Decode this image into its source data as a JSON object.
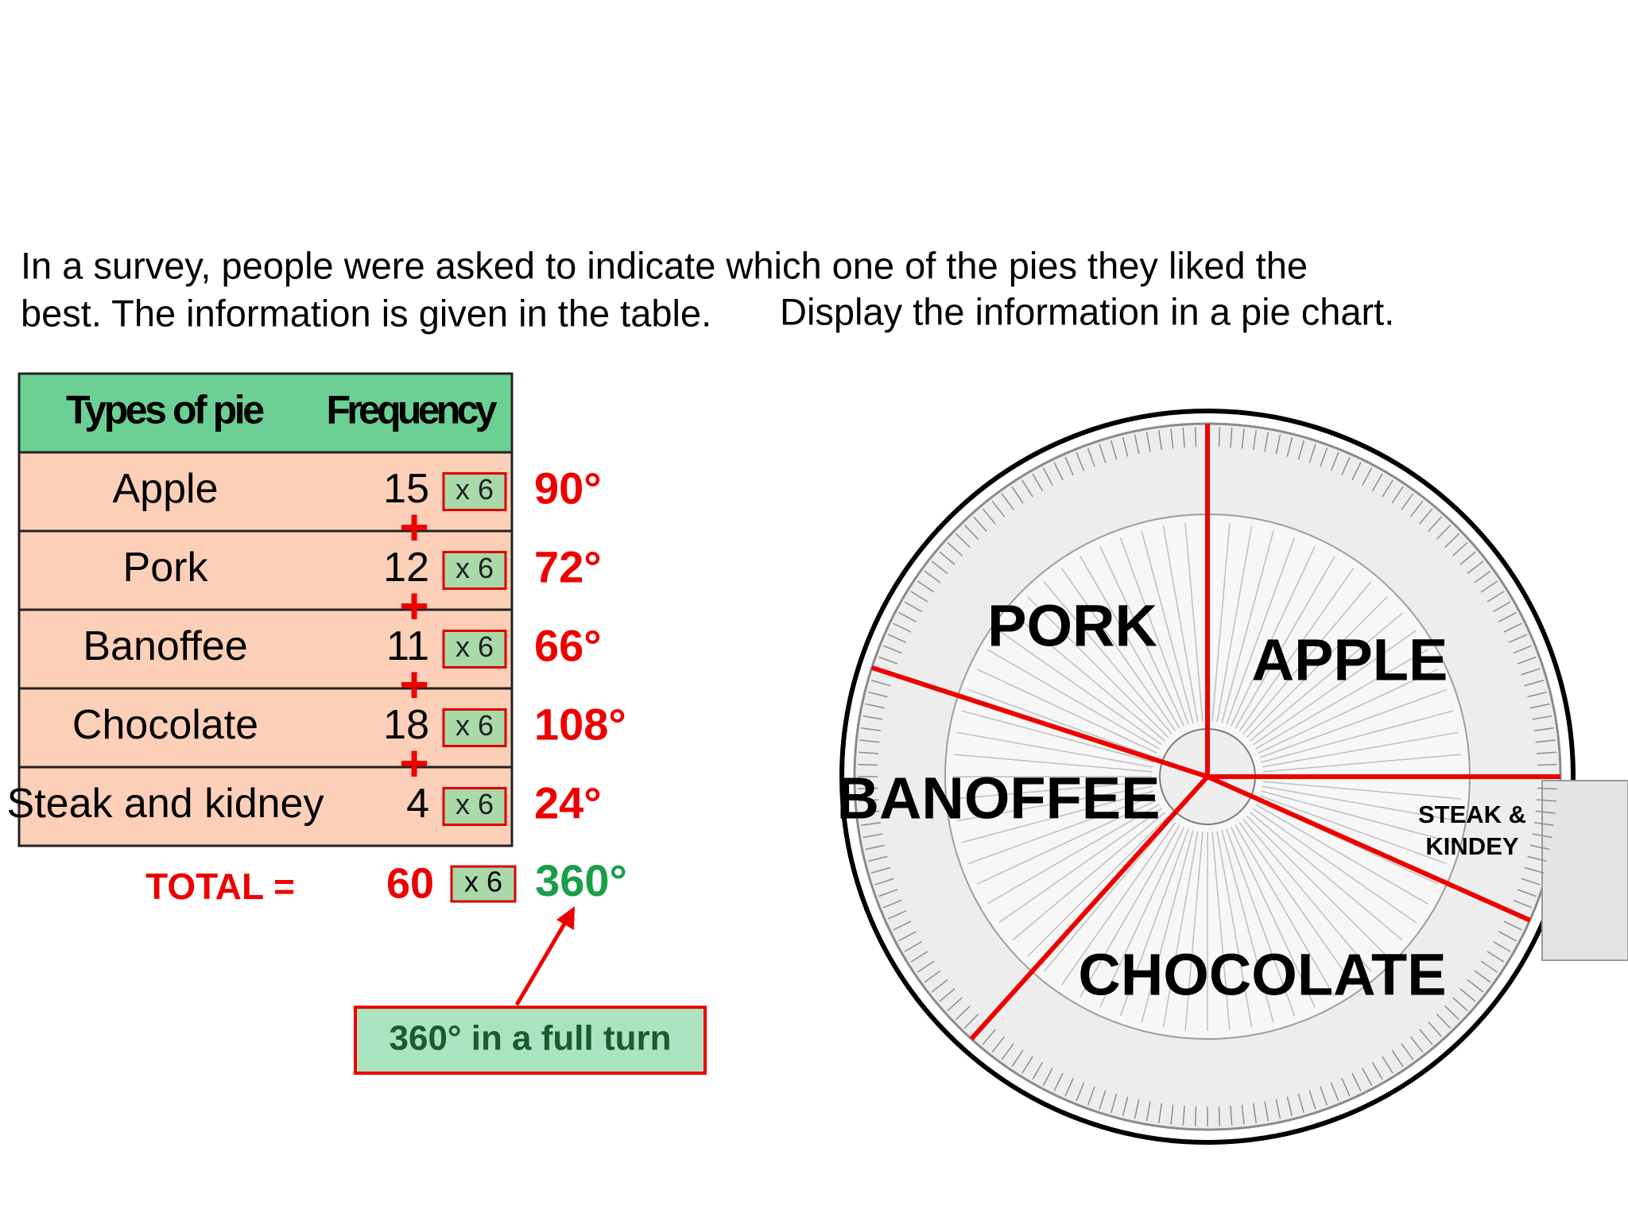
{
  "instructions": [
    "In a survey, people were asked to indicate which one of the pies they liked the",
    "best. The information is given in the table.",
    "Display the information in a pie chart."
  ],
  "table": {
    "header": [
      "Types of pie",
      "Frequency"
    ],
    "rows": [
      [
        "Apple",
        15
      ],
      [
        "Pork",
        12
      ],
      [
        "Banoffee",
        11
      ],
      [
        "Chocolate",
        18
      ],
      [
        "Steak and kidney",
        4
      ]
    ]
  },
  "multipliers": [
    "x 6",
    "x 6",
    "x 6",
    "x 6",
    "x 6"
  ],
  "plus_signs": [
    "+",
    "+",
    "+",
    "+"
  ],
  "angles": [
    {
      "value": 90,
      "label": "90°"
    },
    {
      "value": 72,
      "label": "72°"
    },
    {
      "value": 66,
      "label": "66°"
    },
    {
      "value": 108,
      "label": "108°"
    },
    {
      "value": 24,
      "label": "24°"
    }
  ],
  "total": {
    "label": "TOTAL =",
    "frequency": 60,
    "multiplier": "x 6",
    "angle": {
      "value": 360,
      "label": "360°"
    }
  },
  "callout": "360° in a full turn",
  "pie_labels": [
    "APPLE",
    "PORK",
    "BANOFFEE",
    "CHOCOLATE",
    [
      "STEAK &",
      "KINDEY"
    ]
  ]
}
